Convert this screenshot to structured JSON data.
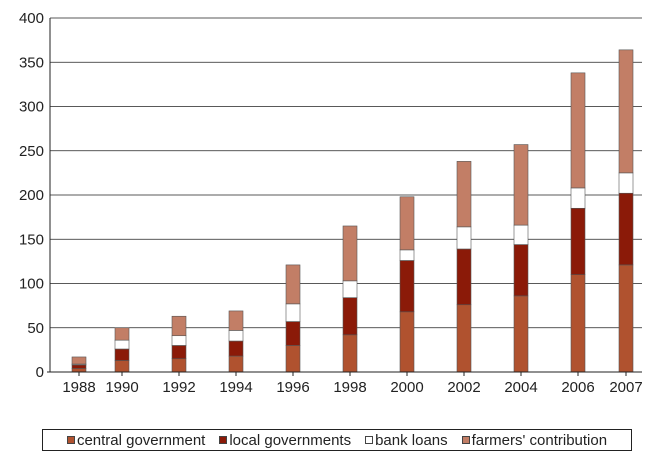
{
  "chart_data": {
    "type": "bar",
    "stacked": true,
    "categories": [
      "1988",
      "1990",
      "1992",
      "1994",
      "1996",
      "1998",
      "2000",
      "2002",
      "2004",
      "2006",
      "2007"
    ],
    "y_ticks": [
      "0",
      "50",
      "100",
      "150",
      "200",
      "250",
      "300",
      "350",
      "400"
    ],
    "ylim": [
      0,
      400
    ],
    "grid": "horizontal",
    "legend_position": "bottom",
    "series": [
      {
        "name": "central government",
        "color": "#B0522F",
        "values": [
          4,
          13,
          15,
          18,
          30,
          42,
          68,
          76,
          86,
          110,
          121
        ]
      },
      {
        "name": "local governments",
        "color": "#8B1A08",
        "values": [
          4,
          13,
          15,
          17,
          27,
          42,
          58,
          63,
          58,
          75,
          81
        ]
      },
      {
        "name": "bank loans",
        "color": "#FFFFFF",
        "values": [
          1,
          10,
          11,
          12,
          20,
          19,
          12,
          25,
          22,
          23,
          23
        ]
      },
      {
        "name": "farmers' contribution",
        "color": "#C27E66",
        "values": [
          8,
          14,
          22,
          22,
          44,
          62,
          60,
          74,
          91,
          130,
          139
        ]
      }
    ]
  }
}
